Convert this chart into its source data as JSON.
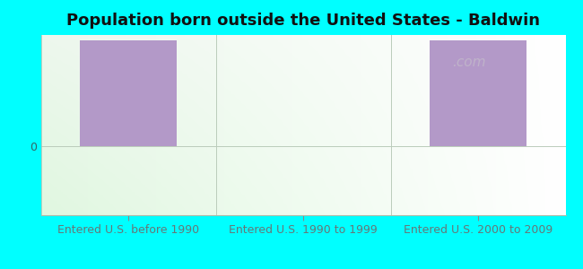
{
  "title": "Population born outside the United States - Baldwin",
  "categories": [
    "Entered U.S. before 1990",
    "Entered U.S. 1990 to 1999",
    "Entered U.S. 2000 to 2009"
  ],
  "values": [
    100,
    0,
    100
  ],
  "bar_color": "#b399c8",
  "background_color": "#00FFFF",
  "bar_width": 0.55,
  "title_fontsize": 13,
  "xlabel_fontsize": 9,
  "ylabel_color": "#336666",
  "label_color": "#667777",
  "title_color": "#111111",
  "ytick_label": "0",
  "ylim": [
    -65,
    105
  ],
  "watermark_color": "#cccccc"
}
